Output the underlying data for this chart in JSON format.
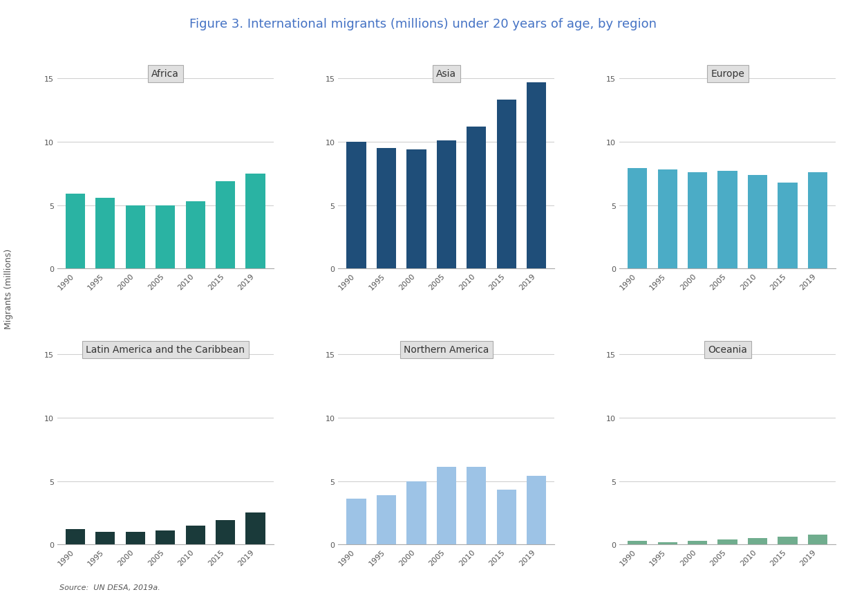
{
  "title": "Figure 3. International migrants (millions) under 20 years of age, by region",
  "title_color": "#4472c4",
  "ylabel": "Migrants (millions)",
  "source": "Source:  UN DESA, 2019a.",
  "years": [
    1990,
    1995,
    2000,
    2005,
    2010,
    2015,
    2019
  ],
  "regions": [
    {
      "name": "Africa",
      "values": [
        5.9,
        5.6,
        5.0,
        5.0,
        5.3,
        6.9,
        7.5
      ],
      "color": "#2ab3a3",
      "ylim": [
        0,
        15
      ],
      "yticks": [
        0,
        5,
        10,
        15
      ],
      "row": 0,
      "col": 0
    },
    {
      "name": "Asia",
      "values": [
        10.0,
        9.5,
        9.4,
        10.1,
        11.2,
        13.3,
        14.7
      ],
      "color": "#1f4e79",
      "ylim": [
        0,
        15
      ],
      "yticks": [
        0,
        5,
        10,
        15
      ],
      "row": 0,
      "col": 1
    },
    {
      "name": "Europe",
      "values": [
        7.9,
        7.8,
        7.6,
        7.7,
        7.4,
        6.8,
        7.6
      ],
      "color": "#4bacc6",
      "ylim": [
        0,
        15
      ],
      "yticks": [
        0,
        5,
        10,
        15
      ],
      "row": 0,
      "col": 2
    },
    {
      "name": "Latin America and the Caribbean",
      "values": [
        1.2,
        1.0,
        1.0,
        1.1,
        1.5,
        1.9,
        2.5
      ],
      "color": "#1a3a3a",
      "ylim": [
        0,
        15
      ],
      "yticks": [
        0,
        5,
        10,
        15
      ],
      "row": 1,
      "col": 0
    },
    {
      "name": "Northern America",
      "values": [
        3.6,
        3.9,
        5.0,
        6.1,
        6.1,
        4.3,
        5.4
      ],
      "color": "#9dc3e6",
      "ylim": [
        0,
        15
      ],
      "yticks": [
        0,
        5,
        10,
        15
      ],
      "row": 1,
      "col": 1
    },
    {
      "name": "Oceania",
      "values": [
        0.3,
        0.2,
        0.3,
        0.4,
        0.5,
        0.6,
        0.8
      ],
      "color": "#70ad8e",
      "ylim": [
        0,
        15
      ],
      "yticks": [
        0,
        5,
        10,
        15
      ],
      "row": 1,
      "col": 2
    }
  ],
  "figure_bg": "#ffffff",
  "axes_bg": "#ffffff",
  "panel_header_bg": "#e0e0e0",
  "grid_color": "#d0d0d0",
  "bar_width": 0.65
}
